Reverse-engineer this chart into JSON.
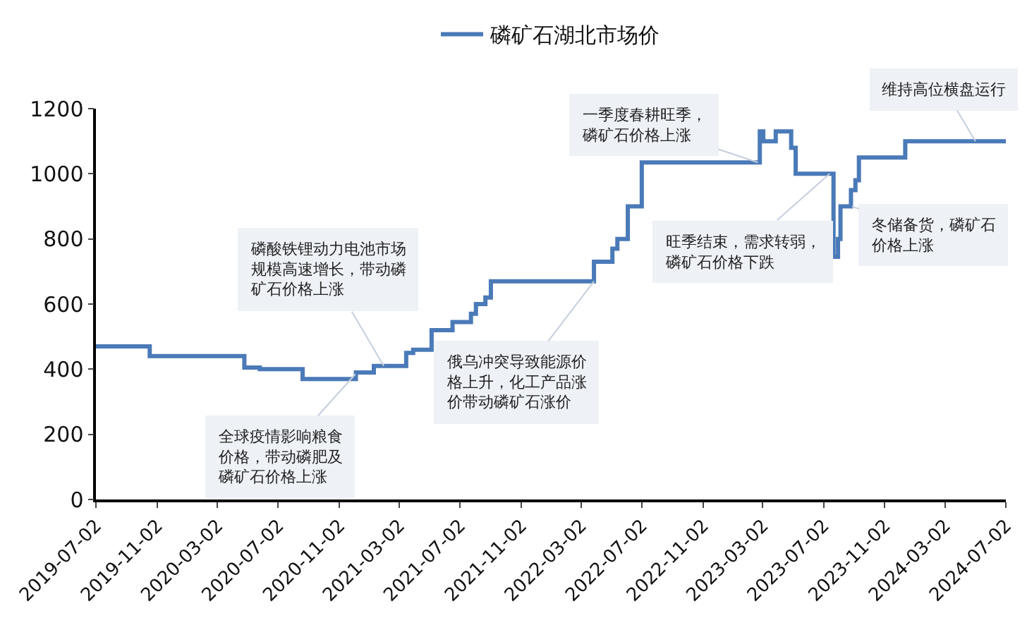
{
  "chart_data": {
    "type": "step",
    "x": [
      "2019-07-02",
      "2019-10-18",
      "2020-04-25",
      "2020-05-26",
      "2020-08-20",
      "2020-12-05",
      "2021-01-10",
      "2021-03-16",
      "2021-03-30",
      "2021-05-06",
      "2021-06-17",
      "2021-07-24",
      "2021-08-03",
      "2021-08-22",
      "2021-09-02",
      "2022-03-28",
      "2022-05-04",
      "2022-05-14",
      "2022-06-04",
      "2022-07-02",
      "2023-02-24",
      "2023-03-03",
      "2023-03-28",
      "2023-04-28",
      "2023-05-07",
      "2023-07-22",
      "2023-07-31",
      "2023-08-05",
      "2023-08-26",
      "2023-09-04",
      "2023-09-11",
      "2023-12-13",
      "2024-07-02"
    ],
    "series": [
      {
        "name": "磷矿石湖北市场价",
        "color": "#4a7ab8",
        "values": [
          470,
          440,
          405,
          400,
          370,
          390,
          410,
          450,
          460,
          520,
          545,
          570,
          600,
          620,
          670,
          730,
          770,
          800,
          900,
          1035,
          1130,
          1100,
          1130,
          1080,
          1000,
          745,
          800,
          900,
          950,
          980,
          1050,
          1100,
          1100
        ]
      }
    ],
    "xlim": [
      "2019-07-02",
      "2024-07-02"
    ],
    "xticks": [
      "2019-07-02",
      "2019-11-02",
      "2020-03-02",
      "2020-07-02",
      "2020-11-02",
      "2021-03-02",
      "2021-07-02",
      "2021-11-02",
      "2022-03-02",
      "2022-07-02",
      "2022-11-02",
      "2023-03-02",
      "2023-07-02",
      "2023-11-02",
      "2024-03-02",
      "2024-07-02"
    ],
    "ylim": [
      0,
      1200
    ],
    "yticks": [
      0,
      200,
      400,
      600,
      800,
      1000,
      1200
    ],
    "legend": "top",
    "marker": "none",
    "line_style": "solid",
    "annotations": [
      {
        "text": "全球疫情影响粮食价格，带动磷肥及磷矿石价格上涨",
        "x": "2020-12-04",
        "y": 385
      },
      {
        "text": "磷酸铁锂动力电池市场规模高速增长，带动磷矿石价格上涨",
        "x": "2021-01-30",
        "y": 410
      },
      {
        "text": "俄乌冲突导致能源价格上升，化工产品涨价带动磷矿石涨价",
        "x": "2022-03-28",
        "y": 670
      },
      {
        "text": "一季度春耕旺季，磷矿石价格上涨",
        "x": "2023-02-20",
        "y": 1035
      },
      {
        "text": "旺季结束，需求转弱，磷矿石价格下跌",
        "x": "2023-07-14",
        "y": 1000
      },
      {
        "text": "冬储备货，磷矿石价格上涨",
        "x": "2023-08-28",
        "y": 900
      },
      {
        "text": "维持高位横盘运行",
        "x": "2024-05-02",
        "y": 1100
      }
    ]
  }
}
